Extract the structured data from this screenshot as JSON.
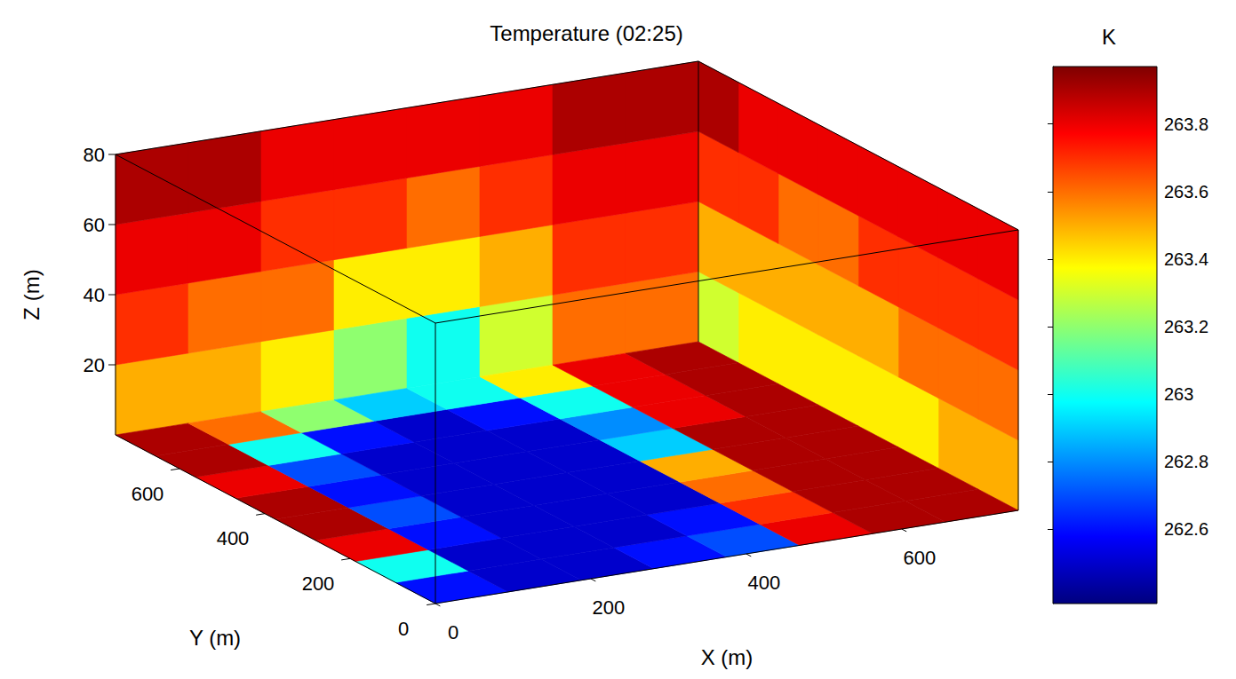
{
  "chart_data": {
    "type": "volume",
    "title": "Temperature (02:25)",
    "xlabel": "X (m)",
    "ylabel": "Y (m)",
    "zlabel": "Z (m)",
    "xlim": [
      0,
      750
    ],
    "ylim": [
      0,
      750
    ],
    "zlim": [
      0,
      80
    ],
    "xticks": [
      0,
      200,
      400,
      600
    ],
    "yticks": [
      0,
      200,
      400,
      600
    ],
    "zticks": [
      20,
      40,
      60,
      80
    ],
    "colorbar": {
      "label": "K",
      "range": [
        262.38,
        263.97
      ],
      "ticks": [
        262.6,
        262.8,
        263,
        263.2,
        263.4,
        263.6,
        263.8
      ]
    },
    "floor_cells": [
      [
        262.6,
        262.5,
        262.5,
        262.6,
        262.7,
        263.8,
        263.9,
        263.9
      ],
      [
        263.0,
        262.5,
        262.5,
        262.5,
        262.6,
        263.7,
        263.9,
        263.9
      ],
      [
        263.8,
        262.6,
        262.5,
        262.5,
        262.5,
        263.6,
        263.9,
        263.9
      ],
      [
        263.9,
        262.7,
        262.5,
        262.5,
        262.5,
        263.5,
        263.9,
        263.9
      ],
      [
        263.9,
        262.6,
        262.5,
        262.5,
        262.5,
        262.9,
        263.9,
        263.9
      ],
      [
        263.8,
        262.7,
        262.5,
        262.5,
        262.5,
        262.8,
        263.8,
        263.9
      ],
      [
        263.9,
        263.0,
        262.6,
        262.5,
        262.6,
        263.0,
        263.8,
        263.9
      ],
      [
        263.9,
        263.6,
        263.2,
        262.9,
        263.0,
        263.4,
        263.8,
        263.9
      ]
    ],
    "back_wall_cells": [
      [
        263.5,
        263.5,
        263.4,
        263.2,
        263.0,
        263.3,
        263.6,
        263.6
      ],
      [
        263.7,
        263.6,
        263.6,
        263.4,
        263.4,
        263.5,
        263.7,
        263.7
      ],
      [
        263.8,
        263.8,
        263.7,
        263.7,
        263.6,
        263.7,
        263.8,
        263.8
      ],
      [
        263.9,
        263.9,
        263.8,
        263.8,
        263.8,
        263.8,
        263.9,
        263.9
      ]
    ],
    "side_wall_cells": [
      [
        263.5,
        263.5,
        263.4,
        263.4,
        263.4,
        263.4,
        263.4,
        263.3
      ],
      [
        263.6,
        263.6,
        263.6,
        263.5,
        263.5,
        263.5,
        263.5,
        263.5
      ],
      [
        263.7,
        263.7,
        263.7,
        263.7,
        263.6,
        263.6,
        263.7,
        263.7
      ],
      [
        263.8,
        263.8,
        263.8,
        263.8,
        263.8,
        263.8,
        263.8,
        263.9
      ]
    ]
  }
}
